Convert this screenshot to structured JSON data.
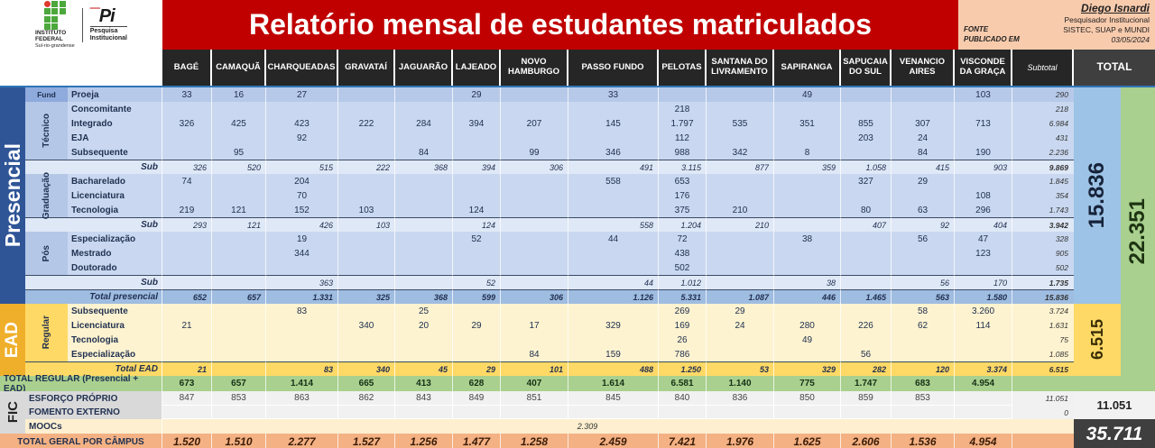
{
  "header": {
    "title": "Relatório mensal de estudantes matriculados",
    "logo_if": {
      "line1": "INSTITUTO",
      "line2": "FEDERAL",
      "line3": "Sul-rio-grandense"
    },
    "logo_pi": {
      "mark": "Pi",
      "line1": "Pesquisa",
      "line2": "Institucional"
    },
    "info": {
      "author": "Diego Isnardi",
      "role": "Pesquisador Institucional",
      "fonte_label": "FONTE",
      "fonte_value": "SISTEC, SUAP e MUNDI",
      "publicado_label": "PUBLICADO EM",
      "publicado_value": "03/05/2024"
    }
  },
  "columns": [
    "BAGÉ",
    "CAMAQUÃ",
    "CHARQUEADAS",
    "GRAVATAÍ",
    "JAGUARÃO",
    "LAJEADO",
    "NOVO HAMBURGO",
    "PASSO FUNDO",
    "PELOTAS",
    "SANTANA DO LIVRAMENTO",
    "SAPIRANGA",
    "SAPUCAIA DO SUL",
    "VENANCIO AIRES",
    "VISCONDE DA GRAÇA"
  ],
  "subtotal_header": "Subtotal",
  "total_header": "TOTAL",
  "side_labels": {
    "presencial": "Presencial",
    "ead": "EAD",
    "fic": "FIC"
  },
  "group_labels": {
    "fund": "Fund",
    "tecnico": "Técnico",
    "graduacao": "Graduação",
    "pos": "Pós",
    "regular": "Regular"
  },
  "totals": {
    "presencial": "15.836",
    "ead": "6.515",
    "regular": "22.351",
    "fic": "11.051",
    "geral": "35.711"
  },
  "colors": {
    "title_bg": "#C00000",
    "header_bg": "#262626",
    "total_header_bg": "#3F3F3F",
    "info_bg": "#F8CBAD",
    "presencial_blue": "#2F5597",
    "ead_gold": "#EFAF2B",
    "green": "#A9D08E",
    "orange": "#F4B183",
    "dark_cell": "#3F3F3F"
  },
  "rows": [
    {
      "section": "presencial",
      "kind": "proeja",
      "label": "Proeja",
      "cells": [
        "33",
        "16",
        "27",
        "",
        "",
        "29",
        "",
        "33",
        "",
        "",
        "49",
        "",
        "",
        "103"
      ],
      "subtotal": "290"
    },
    {
      "section": "presencial",
      "kind": "data",
      "label": "Concomitante",
      "cells": [
        "",
        "",
        "",
        "",
        "",
        "",
        "",
        "",
        "218",
        "",
        "",
        "",
        "",
        ""
      ],
      "subtotal": "218"
    },
    {
      "section": "presencial",
      "kind": "data",
      "label": "Integrado",
      "cells": [
        "326",
        "425",
        "423",
        "222",
        "284",
        "394",
        "207",
        "145",
        "1.797",
        "535",
        "351",
        "855",
        "307",
        "713"
      ],
      "subtotal": "6.984"
    },
    {
      "section": "presencial",
      "kind": "data",
      "label": "EJA",
      "cells": [
        "",
        "",
        "92",
        "",
        "",
        "",
        "",
        "",
        "112",
        "",
        "",
        "203",
        "24",
        ""
      ],
      "subtotal": "431"
    },
    {
      "section": "presencial",
      "kind": "data",
      "label": "Subsequente",
      "cells": [
        "",
        "95",
        "",
        "",
        "84",
        "",
        "99",
        "346",
        "988",
        "342",
        "8",
        "",
        "84",
        "190"
      ],
      "subtotal": "2.236"
    },
    {
      "section": "presencial",
      "kind": "sub",
      "label": "Sub",
      "cells": [
        "326",
        "520",
        "515",
        "222",
        "368",
        "394",
        "306",
        "491",
        "3.115",
        "877",
        "359",
        "1.058",
        "415",
        "903"
      ],
      "subtotal": "9.869"
    },
    {
      "section": "presencial",
      "kind": "data",
      "label": "Bacharelado",
      "cells": [
        "74",
        "",
        "204",
        "",
        "",
        "",
        "",
        "558",
        "653",
        "",
        "",
        "327",
        "29",
        ""
      ],
      "subtotal": "1.845"
    },
    {
      "section": "presencial",
      "kind": "data",
      "label": "Licenciatura",
      "cells": [
        "",
        "",
        "70",
        "",
        "",
        "",
        "",
        "",
        "176",
        "",
        "",
        "",
        "",
        "108"
      ],
      "subtotal": "354"
    },
    {
      "section": "presencial",
      "kind": "data",
      "label": "Tecnologia",
      "cells": [
        "219",
        "121",
        "152",
        "103",
        "",
        "124",
        "",
        "",
        "375",
        "210",
        "",
        "80",
        "63",
        "296"
      ],
      "subtotal": "1.743"
    },
    {
      "section": "presencial",
      "kind": "sub",
      "label": "Sub",
      "cells": [
        "293",
        "121",
        "426",
        "103",
        "",
        "124",
        "",
        "558",
        "1.204",
        "210",
        "",
        "407",
        "92",
        "404"
      ],
      "subtotal": "3.942"
    },
    {
      "section": "presencial",
      "kind": "data",
      "label": "Especialização",
      "cells": [
        "",
        "",
        "19",
        "",
        "",
        "52",
        "",
        "44",
        "72",
        "",
        "38",
        "",
        "56",
        "47"
      ],
      "subtotal": "328"
    },
    {
      "section": "presencial",
      "kind": "data",
      "label": "Mestrado",
      "cells": [
        "",
        "",
        "344",
        "",
        "",
        "",
        "",
        "",
        "438",
        "",
        "",
        "",
        "",
        "123"
      ],
      "subtotal": "905"
    },
    {
      "section": "presencial",
      "kind": "data",
      "label": "Doutorado",
      "cells": [
        "",
        "",
        "",
        "",
        "",
        "",
        "",
        "",
        "502",
        "",
        "",
        "",
        "",
        ""
      ],
      "subtotal": "502"
    },
    {
      "section": "presencial",
      "kind": "sub",
      "label": "Sub",
      "cells": [
        "",
        "",
        "363",
        "",
        "",
        "52",
        "",
        "44",
        "1.012",
        "",
        "38",
        "",
        "56",
        "170"
      ],
      "subtotal": "1.735"
    },
    {
      "section": "presencial",
      "kind": "total",
      "label": "Total presencial",
      "cells": [
        "652",
        "657",
        "1.331",
        "325",
        "368",
        "599",
        "306",
        "1.126",
        "5.331",
        "1.087",
        "446",
        "1.465",
        "563",
        "1.580"
      ],
      "subtotal": "15.836"
    },
    {
      "section": "ead",
      "kind": "data",
      "label": "Subsequente",
      "cells": [
        "",
        "",
        "83",
        "",
        "25",
        "",
        "",
        "",
        "269",
        "29",
        "",
        "",
        "58",
        "3.260"
      ],
      "subtotal": "3.724"
    },
    {
      "section": "ead",
      "kind": "data",
      "label": "Licenciatura",
      "cells": [
        "21",
        "",
        "",
        "340",
        "20",
        "29",
        "17",
        "329",
        "169",
        "24",
        "280",
        "226",
        "62",
        "114"
      ],
      "subtotal": "1.631"
    },
    {
      "section": "ead",
      "kind": "data",
      "label": "Tecnologia",
      "cells": [
        "",
        "",
        "",
        "",
        "",
        "",
        "",
        "",
        "26",
        "",
        "49",
        "",
        "",
        ""
      ],
      "subtotal": "75"
    },
    {
      "section": "ead",
      "kind": "data",
      "label": "Especialização",
      "cells": [
        "",
        "",
        "",
        "",
        "",
        "",
        "84",
        "159",
        "786",
        "",
        "",
        "56",
        "",
        ""
      ],
      "subtotal": "1.085"
    },
    {
      "section": "ead",
      "kind": "total",
      "label": "Total EAD",
      "cells": [
        "21",
        "",
        "83",
        "340",
        "45",
        "29",
        "101",
        "488",
        "1.250",
        "53",
        "329",
        "282",
        "120",
        "3.374"
      ],
      "subtotal": "6.515"
    },
    {
      "section": "regular",
      "kind": "grand",
      "label": "TOTAL REGULAR (Presencial + EAD)",
      "cells": [
        "673",
        "657",
        "1.414",
        "665",
        "413",
        "628",
        "407",
        "1.614",
        "6.581",
        "1.140",
        "775",
        "1.747",
        "683",
        "4.954"
      ],
      "subtotal": ""
    },
    {
      "section": "fic",
      "kind": "data",
      "label": "ESFORÇO PRÓPRIO",
      "cells": [
        "847",
        "853",
        "863",
        "862",
        "843",
        "849",
        "851",
        "845",
        "840",
        "836",
        "850",
        "859",
        "853",
        ""
      ],
      "subtotal": "11.051"
    },
    {
      "section": "fic",
      "kind": "data",
      "label": "FOMENTO EXTERNO",
      "cells": [
        "",
        "",
        "",
        "",
        "",
        "",
        "",
        "",
        "",
        "",
        "",
        "",
        "",
        ""
      ],
      "subtotal": "0"
    },
    {
      "section": "fic",
      "kind": "band",
      "label": "MOOCs",
      "band_value": "2.309",
      "subtotal": ""
    },
    {
      "section": "geral",
      "kind": "grand",
      "label": "TOTAL GERAL POR CÂMPUS",
      "cells": [
        "1.520",
        "1.510",
        "2.277",
        "1.527",
        "1.256",
        "1.477",
        "1.258",
        "2.459",
        "7.421",
        "1.976",
        "1.625",
        "2.606",
        "1.536",
        "4.954"
      ],
      "subtotal": ""
    }
  ]
}
